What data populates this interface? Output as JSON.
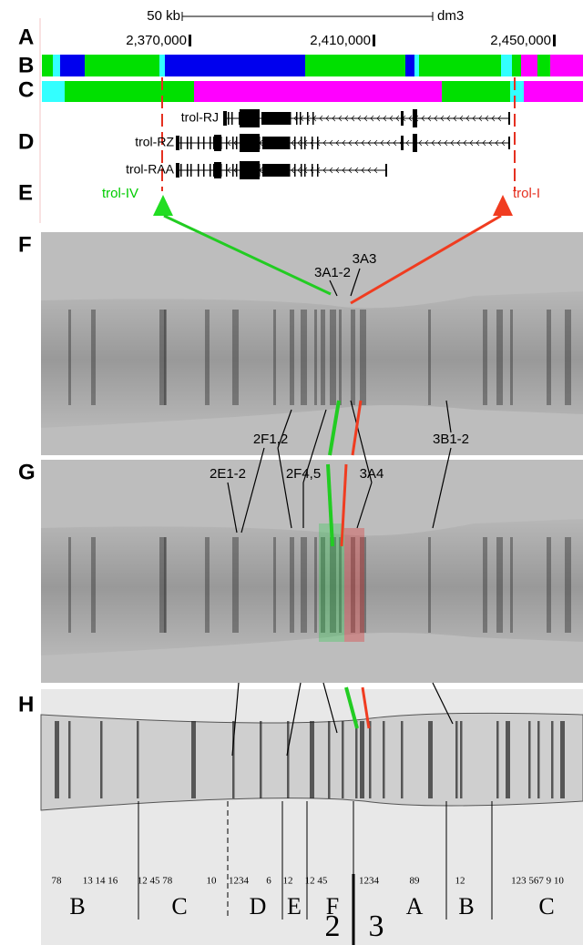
{
  "panel_labels": [
    "A",
    "B",
    "C",
    "D",
    "E",
    "F",
    "G",
    "H"
  ],
  "scale": {
    "length": "50 kb",
    "assembly": "dm3"
  },
  "coordinates": [
    "2,370,000",
    "2,410,000",
    "2,450,000"
  ],
  "transcripts": [
    "trol-RJ",
    "trol-RZ",
    "trol-RAA"
  ],
  "promoters": {
    "left": "trol-IV",
    "right": "trol-I"
  },
  "bands_f": [
    "3A1-2",
    "3A3"
  ],
  "bands_g": [
    "2F1,2",
    "3B1-2",
    "2E1-2",
    "2F4,5",
    "3A4"
  ],
  "map": {
    "band_numbers": [
      "78",
      "13 14 16",
      "12 45 78",
      "10",
      "1234",
      "6",
      "12",
      "12 45",
      "1234",
      "89",
      "12",
      "123 567 9 10"
    ],
    "subdivisions": [
      "B",
      "C",
      "D",
      "E",
      "F",
      "A",
      "B",
      "C"
    ],
    "divisions": [
      "2",
      "3"
    ]
  }
}
